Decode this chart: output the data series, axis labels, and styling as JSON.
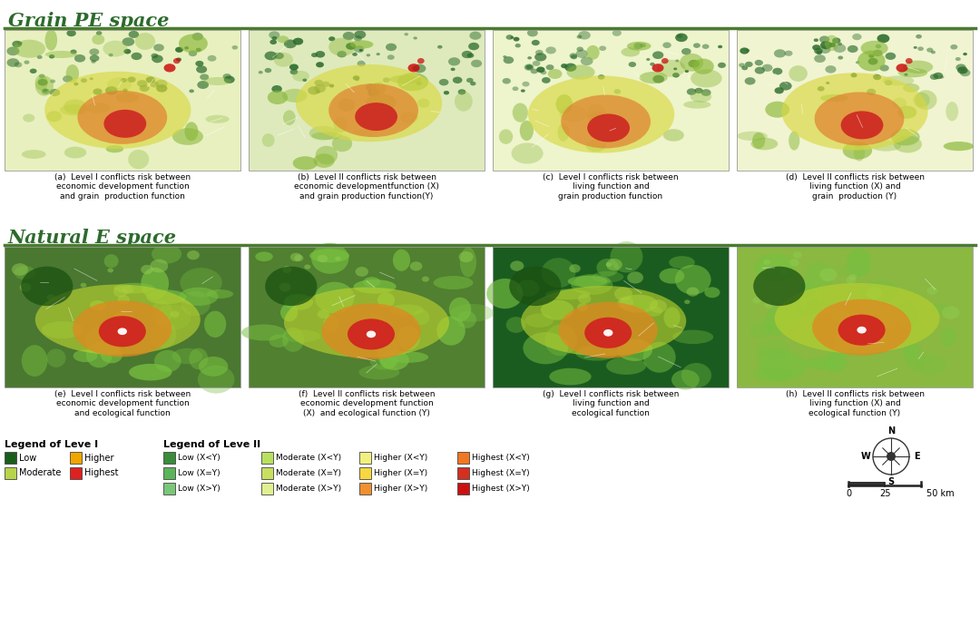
{
  "title_row1": "Grain PE space",
  "title_row2": "Natural E space",
  "title_color": "#2d6a2d",
  "title_line_color": "#4a7c2f",
  "background_color": "#ffffff",
  "captions": [
    "(a)  Level I conflicts risk between\neconomic development function\nand grain  production function",
    "(b)  Level II conflicts risk between\neconomic developmentfunction (X)\nand grain production function(Y)",
    "(c)  Level I conflicts risk between\nliving function and\ngrain production function",
    "(d)  Level II conflicts risk between\nliving function (X) and\ngrain  production (Y)",
    "(e)  Level I conflicts risk between\neconomic development function\nand ecological function",
    "(f)  Level II conflicts risk between\neconomic development function\n(X)  and ecological function (Y)",
    "(g)  Level I conflicts risk between\nliving function and\necological function",
    "(h)  Level II conflicts risk between\nliving function (X) and\necological function (Y)"
  ],
  "legend1_title": "Legend of Leve I",
  "legend1_items": [
    {
      "label": "Low",
      "color": "#1a5c1a"
    },
    {
      "label": "Higher",
      "color": "#f0a500"
    },
    {
      "label": "Moderate",
      "color": "#b8d44a"
    },
    {
      "label": "Highest",
      "color": "#e02020"
    }
  ],
  "legend2_title": "Legend of Leve II",
  "legend2_rows": [
    [
      {
        "label": "Low (X<Y)",
        "color": "#3a8c3a"
      },
      {
        "label": "Moderate (X<Y)",
        "color": "#b8e060"
      },
      {
        "label": "Higher (X<Y)",
        "color": "#f0f080"
      },
      {
        "label": "Highest (X<Y)",
        "color": "#f07820"
      }
    ],
    [
      {
        "label": "Low (X=Y)",
        "color": "#5ab55a"
      },
      {
        "label": "Moderate (X=Y)",
        "color": "#c8e060"
      },
      {
        "label": "Higher (X=Y)",
        "color": "#f8d840"
      },
      {
        "label": "Highest (X=Y)",
        "color": "#d43020"
      }
    ],
    [
      {
        "label": "Low (X>Y)",
        "color": "#78c878"
      },
      {
        "label": "Moderate (X>Y)",
        "color": "#e0f090"
      },
      {
        "label": "Higher (X>Y)",
        "color": "#f09030"
      },
      {
        "label": "Highest (X>Y)",
        "color": "#cc1010"
      }
    ]
  ]
}
